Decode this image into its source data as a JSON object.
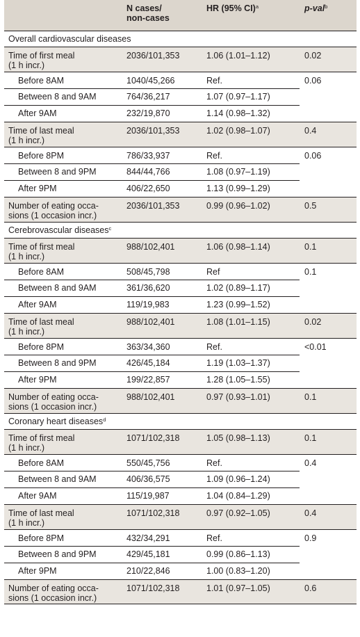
{
  "header": {
    "col_cases_line1": "N cases/",
    "col_cases_line2": "non-cases",
    "col_hr": "HR (95% CI)",
    "col_hr_sup": "a",
    "col_pval": "p-val",
    "col_pval_sup": "b"
  },
  "sections": [
    {
      "title": "Overall cardiovascular diseases",
      "sup": "",
      "groups": [
        {
          "label": "Time of first meal\n(1 h incr.)",
          "cases": "2036/101,353",
          "hr": "1.06 (1.01–1.12)",
          "pval": "0.02",
          "sub": {
            "pval": "0.06",
            "rows": [
              {
                "label": "Before 8AM",
                "cases": "1040/45,266",
                "hr": "Ref."
              },
              {
                "label": "Between 8 and 9AM",
                "cases": "764/36,217",
                "hr": "1.07 (0.97–1.17)"
              },
              {
                "label": "After 9AM",
                "cases": "232/19,870",
                "hr": "1.14 (0.98–1.32)"
              }
            ]
          }
        },
        {
          "label": "Time of last meal\n(1 h incr.)",
          "cases": "2036/101,353",
          "hr": "1.02 (0.98–1.07)",
          "pval": "0.4",
          "sub": {
            "pval": "0.06",
            "rows": [
              {
                "label": "Before 8PM",
                "cases": "786/33,937",
                "hr": "Ref."
              },
              {
                "label": "Between 8 and 9PM",
                "cases": "844/44,766",
                "hr": "1.08 (0.97–1.19)"
              },
              {
                "label": "After 9PM",
                "cases": "406/22,650",
                "hr": "1.13 (0.99–1.29)"
              }
            ]
          }
        },
        {
          "label": "Number of eating occa-\nsions (1 occasion incr.)",
          "cases": "2036/101,353",
          "hr": "0.99 (0.96–1.02)",
          "pval": "0.5"
        }
      ]
    },
    {
      "title": "Cerebrovascular diseases",
      "sup": "c",
      "groups": [
        {
          "label": "Time of first meal\n(1 h incr.)",
          "cases": "988/102,401",
          "hr": "1.06 (0.98–1.14)",
          "pval": "0.1",
          "sub": {
            "pval": "0.1",
            "rows": [
              {
                "label": "Before 8AM",
                "cases": "508/45,798",
                "hr": "Ref"
              },
              {
                "label": "Between 8 and 9AM",
                "cases": "361/36,620",
                "hr": "1.02 (0.89–1.17)"
              },
              {
                "label": "After 9AM",
                "cases": "119/19,983",
                "hr": "1.23 (0.99–1.52)"
              }
            ]
          }
        },
        {
          "label": "Time of last meal\n(1 h incr.)",
          "cases": "988/102,401",
          "hr": "1.08 (1.01–1.15)",
          "pval": "0.02",
          "sub": {
            "pval": "<0.01",
            "rows": [
              {
                "label": "Before 8PM",
                "cases": "363/34,360",
                "hr": "Ref."
              },
              {
                "label": "Between 8 and 9PM",
                "cases": "426/45,184",
                "hr": "1.19 (1.03–1.37)"
              },
              {
                "label": "After 9PM",
                "cases": "199/22,857",
                "hr": "1.28 (1.05–1.55)"
              }
            ]
          }
        },
        {
          "label": "Number of eating occa-\nsions (1 occasion incr.)",
          "cases": "988/102,401",
          "hr": "0.97 (0.93–1.01)",
          "pval": "0.1"
        }
      ]
    },
    {
      "title": "Coronary heart diseases",
      "sup": "d",
      "groups": [
        {
          "label": "Time of first meal\n(1 h incr.)",
          "cases": "1071/102,318",
          "hr": "1.05 (0.98–1.13)",
          "pval": "0.1",
          "sub": {
            "pval": "0.4",
            "rows": [
              {
                "label": "Before 8AM",
                "cases": "550/45,756",
                "hr": "Ref."
              },
              {
                "label": "Between 8 and 9AM",
                "cases": "406/36,575",
                "hr": "1.09 (0.96–1.24)"
              },
              {
                "label": "After 9AM",
                "cases": "115/19,987",
                "hr": "1.04 (0.84–1.29)"
              }
            ]
          }
        },
        {
          "label": "Time of last meal\n(1 h incr.)",
          "cases": "1071/102,318",
          "hr": "0.97 (0.92–1.05)",
          "pval": "0.4",
          "sub": {
            "pval": "0.9",
            "rows": [
              {
                "label": "Before 8PM",
                "cases": "432/34,291",
                "hr": "Ref."
              },
              {
                "label": "Between 8 and 9PM",
                "cases": "429/45,181",
                "hr": "0.99 (0.86–1.13)"
              },
              {
                "label": "After 9PM",
                "cases": "210/22,846",
                "hr": "1.00 (0.83–1.20)"
              }
            ]
          }
        },
        {
          "label": "Number of eating occa-\nsions (1 occasion incr.)",
          "cases": "1071/102,318",
          "hr": "1.01 (0.97–1.05)",
          "pval": "0.6"
        }
      ]
    }
  ]
}
